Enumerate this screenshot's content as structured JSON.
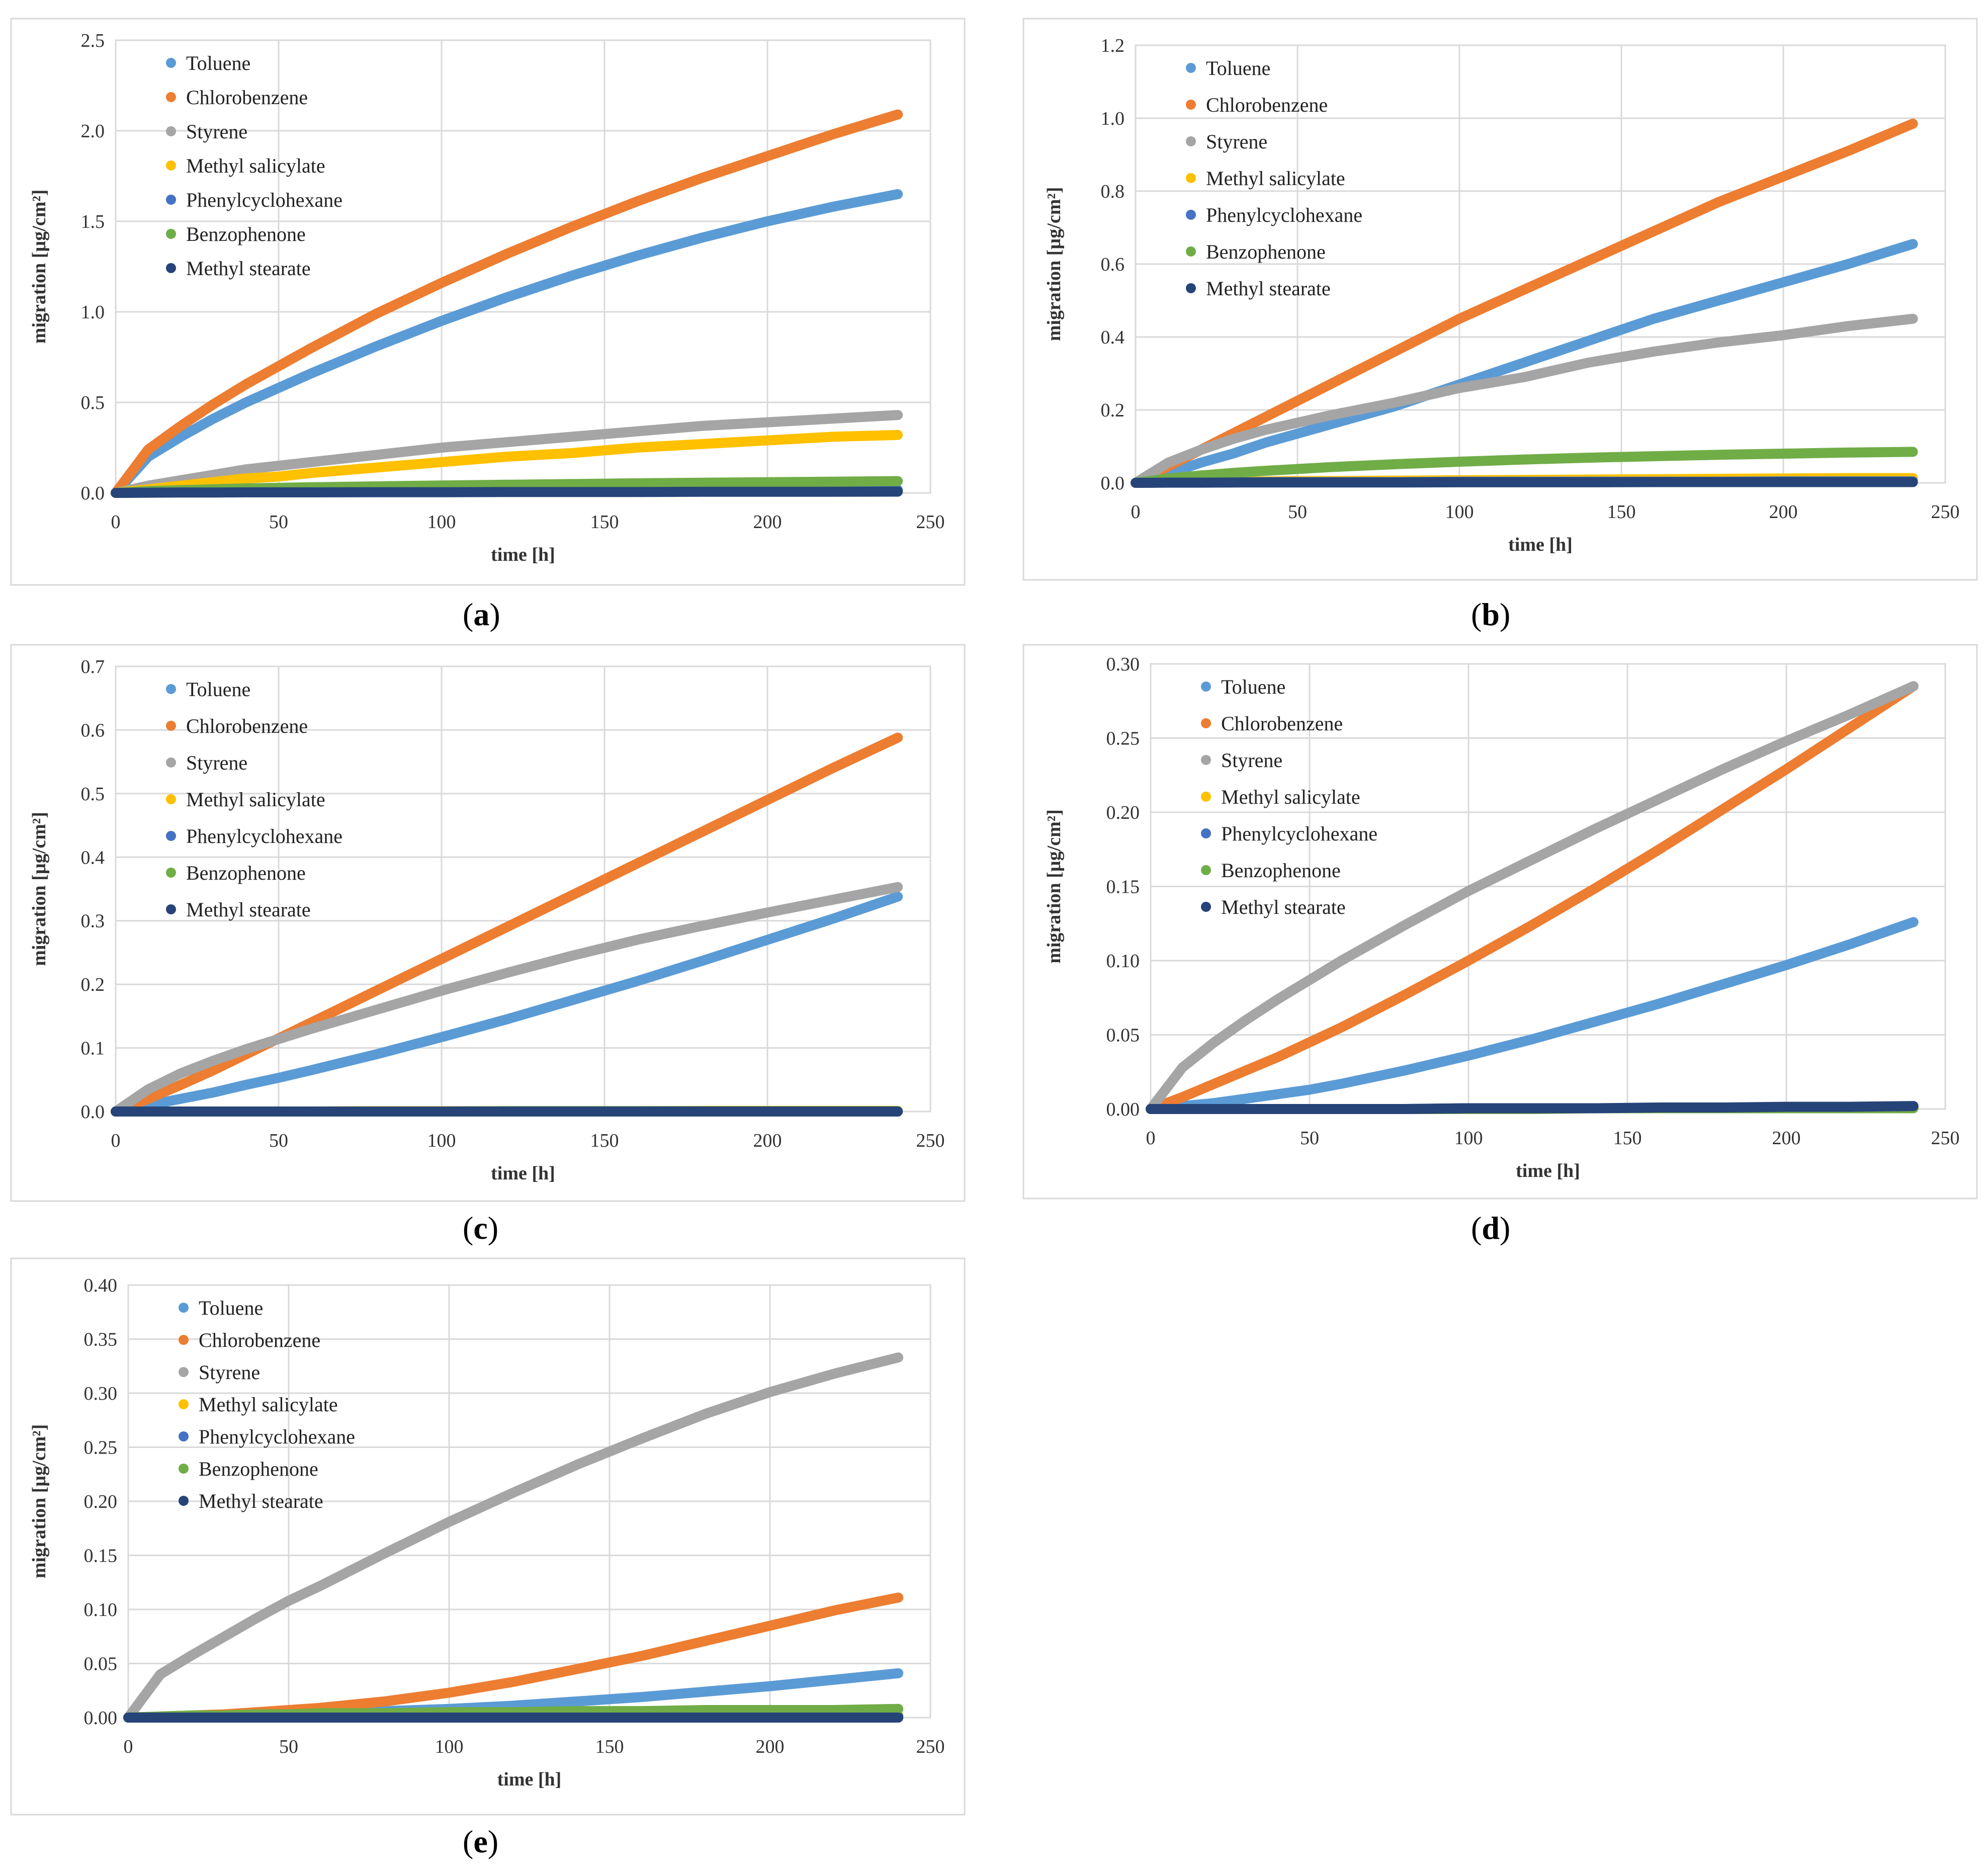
{
  "figure": {
    "series_names": [
      "Toluene",
      "Chlorobenzene",
      "Styrene",
      "Methyl salicylate",
      "Phenylcyclohexane",
      "Benzophenone",
      "Methyl stearate"
    ],
    "colors": [
      "#5b9bd5",
      "#ed7d31",
      "#a5a5a5",
      "#ffc000",
      "#4472c4",
      "#70ad47",
      "#264478"
    ]
  },
  "chart_data": [
    {
      "panel_label": "a",
      "type": "line",
      "xlabel": "time [h]",
      "ylabel": "migration [µg/cm²]",
      "xlim": [
        0,
        250
      ],
      "ylim": [
        0,
        2.5
      ],
      "xticks": [
        "0",
        "50",
        "100",
        "150",
        "200",
        "250"
      ],
      "yticks": [
        "0.0",
        "0.5",
        "1.0",
        "1.5",
        "2.0",
        "2.5"
      ],
      "legend": [
        "Toluene",
        "Chlorobenzene",
        "Styrene",
        "Methyl salicylate",
        "Phenylcyclohexane",
        "Benzophenone",
        "Methyl stearate"
      ],
      "legend_position": "top-left",
      "x": [
        0,
        10,
        20,
        30,
        40,
        50,
        60,
        80,
        100,
        120,
        140,
        160,
        180,
        200,
        220,
        240
      ],
      "series": [
        {
          "name": "Toluene",
          "values": [
            0,
            0.2,
            0.31,
            0.41,
            0.5,
            0.58,
            0.66,
            0.81,
            0.95,
            1.08,
            1.2,
            1.31,
            1.41,
            1.5,
            1.58,
            1.65
          ]
        },
        {
          "name": "Chlorobenzene",
          "values": [
            0,
            0.24,
            0.37,
            0.49,
            0.6,
            0.7,
            0.8,
            0.99,
            1.16,
            1.32,
            1.47,
            1.61,
            1.74,
            1.86,
            1.98,
            2.09
          ]
        },
        {
          "name": "Styrene",
          "values": [
            0,
            0.04,
            0.07,
            0.1,
            0.13,
            0.15,
            0.17,
            0.21,
            0.25,
            0.28,
            0.31,
            0.34,
            0.37,
            0.39,
            0.41,
            0.43
          ]
        },
        {
          "name": "Methyl salicylate",
          "values": [
            0,
            0.02,
            0.04,
            0.06,
            0.08,
            0.09,
            0.11,
            0.14,
            0.17,
            0.2,
            0.22,
            0.25,
            0.27,
            0.29,
            0.31,
            0.32
          ]
        },
        {
          "name": "Phenylcyclohexane",
          "values": [
            0,
            0.002,
            0.003,
            0.004,
            0.005,
            0.006,
            0.007,
            0.008,
            0.009,
            0.01,
            0.011,
            0.012,
            0.013,
            0.014,
            0.015,
            0.016
          ]
        },
        {
          "name": "Benzophenone",
          "values": [
            0,
            0.01,
            0.015,
            0.02,
            0.025,
            0.028,
            0.031,
            0.036,
            0.041,
            0.045,
            0.049,
            0.053,
            0.056,
            0.059,
            0.062,
            0.065
          ]
        },
        {
          "name": "Methyl stearate",
          "values": [
            0,
            0.001,
            0.002,
            0.002,
            0.003,
            0.003,
            0.003,
            0.004,
            0.004,
            0.005,
            0.005,
            0.005,
            0.006,
            0.006,
            0.006,
            0.007
          ]
        }
      ]
    },
    {
      "panel_label": "b",
      "type": "line",
      "xlabel": "time [h]",
      "ylabel": "migration [µg/cm²]",
      "xlim": [
        0,
        250
      ],
      "ylim": [
        0,
        1.2
      ],
      "xticks": [
        "0",
        "50",
        "100",
        "150",
        "200",
        "250"
      ],
      "yticks": [
        "0.0",
        "0.2",
        "0.4",
        "0.6",
        "0.8",
        "1.0",
        "1.2"
      ],
      "legend": [
        "Toluene",
        "Chlorobenzene",
        "Styrene",
        "Methyl salicylate",
        "Phenylcyclohexane",
        "Benzophenone",
        "Methyl stearate"
      ],
      "legend_position": "top-left",
      "x": [
        0,
        10,
        20,
        30,
        40,
        50,
        60,
        80,
        100,
        120,
        140,
        160,
        180,
        200,
        220,
        240
      ],
      "series": [
        {
          "name": "Toluene",
          "values": [
            0,
            0.025,
            0.055,
            0.08,
            0.11,
            0.135,
            0.16,
            0.21,
            0.27,
            0.33,
            0.39,
            0.45,
            0.5,
            0.55,
            0.6,
            0.655
          ]
        },
        {
          "name": "Chlorobenzene",
          "values": [
            0,
            0.045,
            0.09,
            0.135,
            0.18,
            0.225,
            0.27,
            0.36,
            0.45,
            0.53,
            0.61,
            0.69,
            0.77,
            0.84,
            0.91,
            0.985
          ]
        },
        {
          "name": "Styrene",
          "values": [
            0,
            0.055,
            0.09,
            0.12,
            0.145,
            0.165,
            0.185,
            0.22,
            0.26,
            0.29,
            0.33,
            0.36,
            0.385,
            0.405,
            0.43,
            0.45
          ]
        },
        {
          "name": "Methyl salicylate",
          "values": [
            0,
            0.001,
            0.002,
            0.003,
            0.004,
            0.005,
            0.005,
            0.006,
            0.007,
            0.008,
            0.009,
            0.01,
            0.011,
            0.012,
            0.013,
            0.013
          ]
        },
        {
          "name": "Phenylcyclohexane",
          "values": [
            0,
            0.001,
            0.001,
            0.001,
            0.002,
            0.002,
            0.002,
            0.002,
            0.003,
            0.003,
            0.003,
            0.003,
            0.003,
            0.004,
            0.004,
            0.004
          ]
        },
        {
          "name": "Benzophenone",
          "values": [
            0,
            0.012,
            0.02,
            0.027,
            0.033,
            0.038,
            0.043,
            0.051,
            0.058,
            0.064,
            0.069,
            0.073,
            0.077,
            0.08,
            0.083,
            0.085
          ]
        },
        {
          "name": "Methyl stearate",
          "values": [
            0,
            0.0005,
            0.0005,
            0.001,
            0.001,
            0.001,
            0.001,
            0.001,
            0.0015,
            0.0015,
            0.0015,
            0.002,
            0.002,
            0.002,
            0.002,
            0.002
          ]
        }
      ]
    },
    {
      "panel_label": "c",
      "type": "line",
      "xlabel": "time [h]",
      "ylabel": "migration [µg/cm²]",
      "xlim": [
        0,
        250
      ],
      "ylim": [
        0,
        0.7
      ],
      "xticks": [
        "0",
        "50",
        "100",
        "150",
        "200",
        "250"
      ],
      "yticks": [
        "0.0",
        "0.1",
        "0.2",
        "0.3",
        "0.4",
        "0.5",
        "0.6",
        "0.7"
      ],
      "legend": [
        "Toluene",
        "Chlorobenzene",
        "Styrene",
        "Methyl salicylate",
        "Phenylcyclohexane",
        "Benzophenone",
        "Methyl stearate"
      ],
      "legend_position": "top-left",
      "x": [
        0,
        10,
        20,
        30,
        40,
        50,
        60,
        80,
        100,
        120,
        140,
        160,
        180,
        200,
        220,
        240
      ],
      "series": [
        {
          "name": "Toluene",
          "values": [
            0,
            0.01,
            0.02,
            0.03,
            0.042,
            0.053,
            0.065,
            0.09,
            0.117,
            0.145,
            0.175,
            0.205,
            0.237,
            0.27,
            0.303,
            0.338
          ]
        },
        {
          "name": "Chlorobenzene",
          "values": [
            0,
            0.02,
            0.042,
            0.065,
            0.09,
            0.115,
            0.14,
            0.19,
            0.24,
            0.29,
            0.34,
            0.39,
            0.44,
            0.49,
            0.54,
            0.588
          ]
        },
        {
          "name": "Styrene",
          "values": [
            0,
            0.035,
            0.06,
            0.08,
            0.098,
            0.114,
            0.13,
            0.16,
            0.19,
            0.218,
            0.245,
            0.27,
            0.292,
            0.313,
            0.333,
            0.353
          ]
        },
        {
          "name": "Methyl salicylate",
          "values": [
            0,
            0,
            0,
            0,
            0,
            0,
            0,
            0.0005,
            0.0005,
            0.0005,
            0.0005,
            0.0005,
            0.001,
            0.001,
            0.001,
            0.001
          ]
        },
        {
          "name": "Phenylcyclohexane",
          "values": [
            0,
            0,
            0,
            0,
            0,
            0,
            0,
            0,
            0,
            0.0005,
            0.0005,
            0.0005,
            0.0005,
            0.0005,
            0.0005,
            0.0005
          ]
        },
        {
          "name": "Benzophenone",
          "values": [
            0,
            0,
            0,
            0,
            0,
            0,
            0,
            0,
            0,
            0.0005,
            0.0005,
            0.0005,
            0.0005,
            0.0005,
            0.0005,
            0.0005
          ]
        },
        {
          "name": "Methyl stearate",
          "values": [
            0,
            0,
            0,
            0,
            0,
            0,
            0,
            0,
            0,
            0,
            0,
            0,
            0,
            0,
            0,
            0
          ]
        }
      ]
    },
    {
      "panel_label": "d",
      "type": "line",
      "xlabel": "time [h]",
      "ylabel": "migration [µg/cm²]",
      "xlim": [
        0,
        250
      ],
      "ylim": [
        0,
        0.3
      ],
      "xticks": [
        "0",
        "50",
        "100",
        "150",
        "200",
        "250"
      ],
      "yticks": [
        "0.00",
        "0.05",
        "0.10",
        "0.15",
        "0.20",
        "0.25",
        "0.30"
      ],
      "legend": [
        "Toluene",
        "Chlorobenzene",
        "Styrene",
        "Methyl salicylate",
        "Phenylcyclohexane",
        "Benzophenone",
        "Methyl stearate"
      ],
      "legend_position": "top-left",
      "x": [
        0,
        10,
        20,
        30,
        40,
        50,
        60,
        80,
        100,
        120,
        140,
        160,
        180,
        200,
        220,
        240
      ],
      "series": [
        {
          "name": "Toluene",
          "values": [
            0,
            0.002,
            0.004,
            0.007,
            0.01,
            0.013,
            0.017,
            0.026,
            0.036,
            0.047,
            0.059,
            0.071,
            0.084,
            0.097,
            0.111,
            0.126
          ]
        },
        {
          "name": "Chlorobenzene",
          "values": [
            0,
            0.008,
            0.017,
            0.026,
            0.035,
            0.045,
            0.055,
            0.077,
            0.1,
            0.124,
            0.149,
            0.175,
            0.202,
            0.229,
            0.257,
            0.285
          ]
        },
        {
          "name": "Styrene",
          "values": [
            0,
            0.028,
            0.045,
            0.06,
            0.074,
            0.087,
            0.1,
            0.124,
            0.147,
            0.168,
            0.189,
            0.209,
            0.229,
            0.248,
            0.266,
            0.285
          ]
        },
        {
          "name": "Methyl salicylate",
          "values": [
            0,
            0,
            0,
            0,
            0,
            0,
            0,
            0,
            0,
            0.0005,
            0.0005,
            0.0005,
            0.0005,
            0.0005,
            0.001,
            0.001
          ]
        },
        {
          "name": "Phenylcyclohexane",
          "values": [
            0,
            0,
            0,
            0,
            0,
            0,
            0,
            0,
            0.0005,
            0.0005,
            0.0005,
            0.0005,
            0.001,
            0.001,
            0.001,
            0.001
          ]
        },
        {
          "name": "Benzophenone",
          "values": [
            0,
            0,
            0,
            0,
            0,
            0,
            0,
            0,
            0,
            0,
            0.0005,
            0.0005,
            0.0005,
            0.0005,
            0.0005,
            0.0005
          ]
        },
        {
          "name": "Methyl stearate",
          "values": [
            0,
            0,
            0,
            0,
            0,
            0,
            0,
            0,
            0.0005,
            0.0005,
            0.0005,
            0.001,
            0.001,
            0.0015,
            0.0015,
            0.002
          ]
        }
      ]
    },
    {
      "panel_label": "e",
      "type": "line",
      "xlabel": "time [h]",
      "ylabel": "migration [µg/cm²]",
      "xlim": [
        0,
        250
      ],
      "ylim": [
        0,
        0.4
      ],
      "xticks": [
        "0",
        "50",
        "100",
        "150",
        "200",
        "250"
      ],
      "yticks": [
        "0.00",
        "0.05",
        "0.10",
        "0.15",
        "0.20",
        "0.25",
        "0.30",
        "0.35",
        "0.40"
      ],
      "legend": [
        "Toluene",
        "Chlorobenzene",
        "Styrene",
        "Methyl salicylate",
        "Phenylcyclohexane",
        "Benzophenone",
        "Methyl stearate"
      ],
      "legend_position": "top-left",
      "x": [
        0,
        10,
        20,
        30,
        40,
        50,
        60,
        80,
        100,
        120,
        140,
        160,
        180,
        200,
        220,
        240
      ],
      "series": [
        {
          "name": "Toluene",
          "values": [
            0,
            0.0005,
            0.001,
            0.002,
            0.002,
            0.003,
            0.004,
            0.006,
            0.008,
            0.011,
            0.015,
            0.019,
            0.024,
            0.029,
            0.035,
            0.041
          ]
        },
        {
          "name": "Chlorobenzene",
          "values": [
            0,
            0.001,
            0.002,
            0.003,
            0.005,
            0.007,
            0.009,
            0.015,
            0.023,
            0.033,
            0.045,
            0.057,
            0.071,
            0.085,
            0.099,
            0.111
          ]
        },
        {
          "name": "Styrene",
          "values": [
            0,
            0.04,
            0.058,
            0.075,
            0.092,
            0.108,
            0.122,
            0.152,
            0.181,
            0.208,
            0.234,
            0.258,
            0.281,
            0.301,
            0.318,
            0.333
          ]
        },
        {
          "name": "Methyl salicylate",
          "values": [
            0,
            0.0005,
            0.001,
            0.001,
            0.001,
            0.001,
            0.001,
            0.0015,
            0.0015,
            0.0015,
            0.002,
            0.002,
            0.002,
            0.002,
            0.002,
            0.002
          ]
        },
        {
          "name": "Phenylcyclohexane",
          "values": [
            0,
            0,
            0,
            0,
            0,
            0.0005,
            0.0005,
            0.0005,
            0.0005,
            0.0005,
            0.0005,
            0.001,
            0.001,
            0.001,
            0.001,
            0.001
          ]
        },
        {
          "name": "Benzophenone",
          "values": [
            0,
            0.001,
            0.002,
            0.002,
            0.003,
            0.003,
            0.004,
            0.004,
            0.005,
            0.005,
            0.006,
            0.006,
            0.007,
            0.007,
            0.007,
            0.008
          ]
        },
        {
          "name": "Methyl stearate",
          "values": [
            0,
            0,
            0,
            0,
            0,
            0,
            0,
            0,
            0,
            0,
            0,
            0,
            0,
            0,
            0,
            0
          ]
        }
      ]
    }
  ]
}
